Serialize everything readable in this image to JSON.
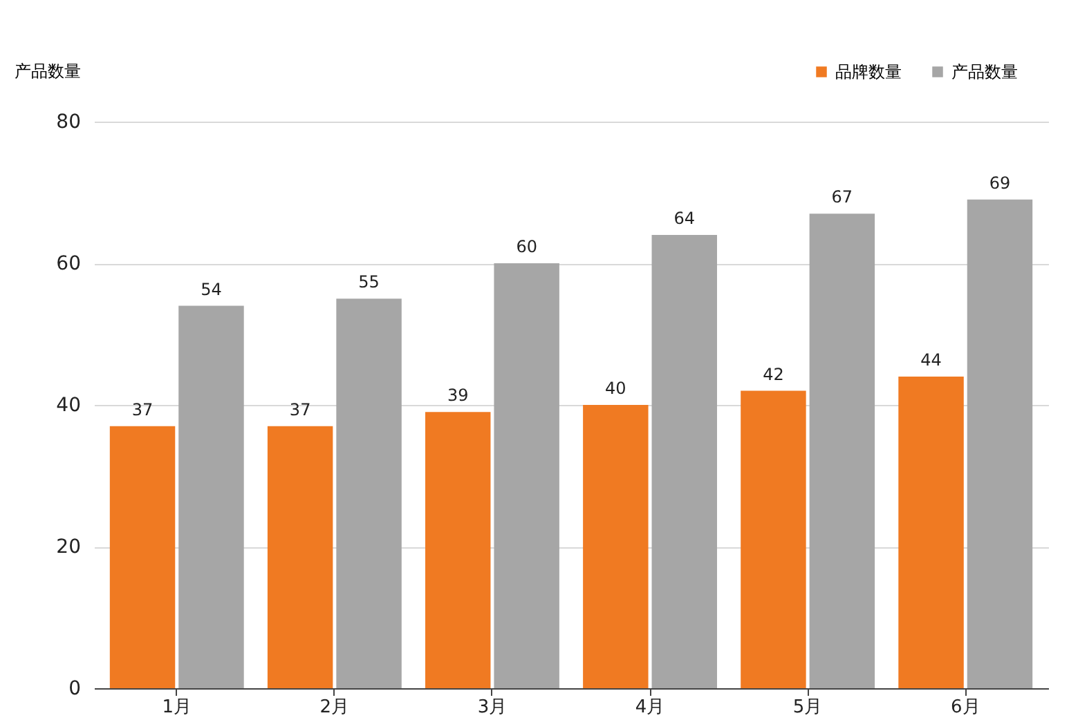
{
  "chart_data": {
    "type": "bar",
    "ylabel": "产品数量",
    "categories": [
      "1月",
      "2月",
      "3月",
      "4月",
      "5月",
      "6月"
    ],
    "series": [
      {
        "name": "品牌数量",
        "color": "#f07a22",
        "values": [
          37,
          37,
          39,
          40,
          42,
          44
        ]
      },
      {
        "name": "产品数量",
        "color": "#a6a6a6",
        "values": [
          54,
          55,
          60,
          64,
          67,
          69
        ]
      }
    ],
    "ylim": [
      0,
      80
    ],
    "yticks": [
      0,
      20,
      40,
      60,
      80
    ],
    "grid": "y",
    "legend": "top right",
    "data_labels": true
  }
}
